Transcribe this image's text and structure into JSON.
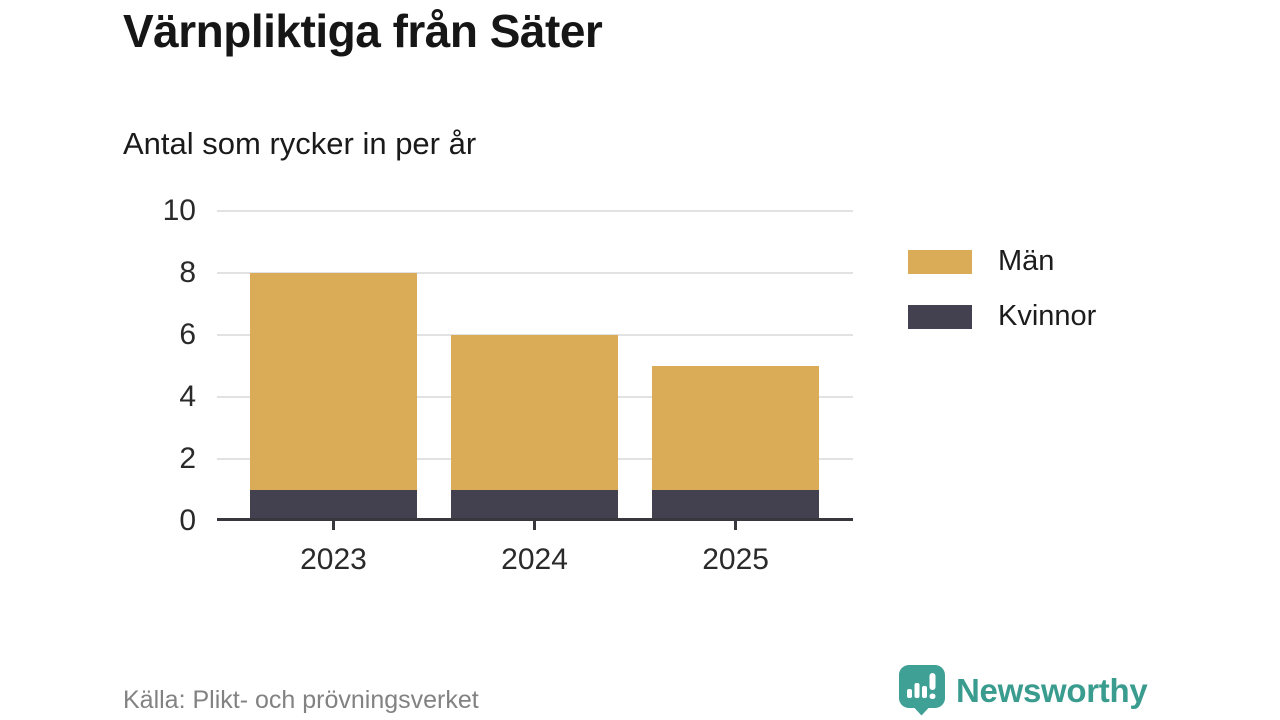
{
  "header": {
    "title": "Värnpliktiga från Säter",
    "subtitle": "Antal som rycker in per år"
  },
  "chart_data": {
    "type": "bar",
    "stacked": true,
    "title": "Värnpliktiga från Säter",
    "subtitle": "Antal som rycker in per år",
    "categories": [
      "2023",
      "2024",
      "2025"
    ],
    "series": [
      {
        "name": "Män",
        "values": [
          7,
          5,
          4
        ],
        "color": "#daac57"
      },
      {
        "name": "Kvinnor",
        "values": [
          1,
          1,
          1
        ],
        "color": "#434150"
      }
    ],
    "stack_bottom_to_top": [
      "Kvinnor",
      "Män"
    ],
    "totals": [
      8,
      6,
      5
    ],
    "xlabel": "",
    "ylabel": "",
    "ylim": [
      0,
      10
    ],
    "yticks": [
      0,
      2,
      4,
      6,
      8,
      10
    ],
    "grid": true,
    "gridline_color": "#e2e2e2",
    "axis_color": "#38373d",
    "legend_position": "right"
  },
  "legend": {
    "items": [
      {
        "label": "Män",
        "color": "#daac57"
      },
      {
        "label": "Kvinnor",
        "color": "#434150"
      }
    ]
  },
  "footer": {
    "source": "Källa: Plikt- och prövningsverket",
    "brand": "Newsworthy",
    "brand_color": "#3a9b8f"
  }
}
